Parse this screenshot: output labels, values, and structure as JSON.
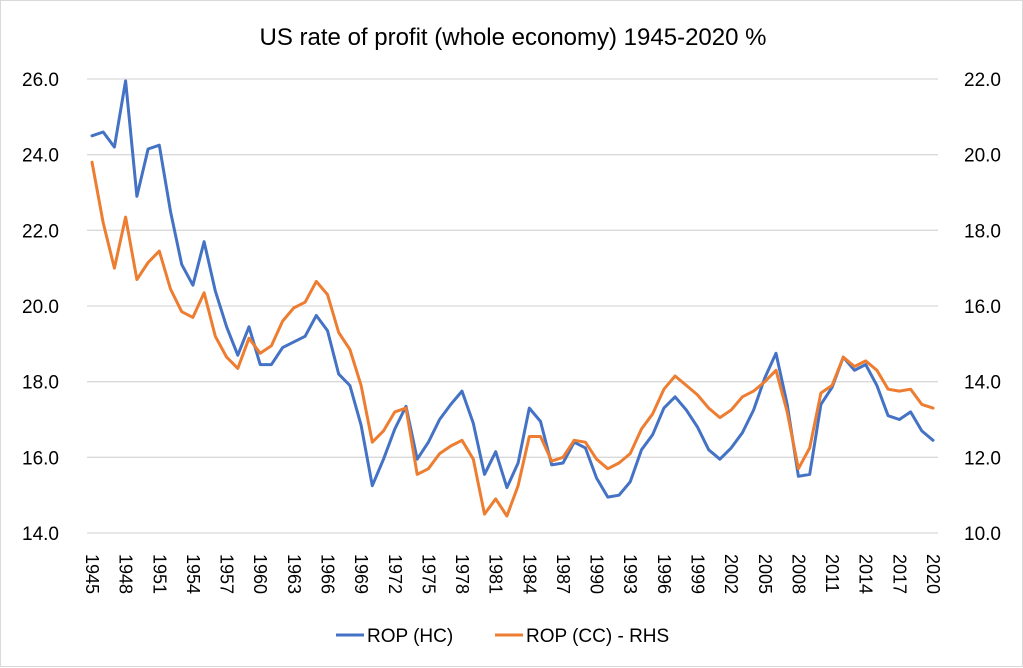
{
  "chart_data": {
    "type": "line",
    "title": "US rate of profit (whole economy) 1945-2020 %",
    "xlabel": "",
    "ylabel": "",
    "y2label": "",
    "x": [
      1945,
      1946,
      1947,
      1948,
      1949,
      1950,
      1951,
      1952,
      1953,
      1954,
      1955,
      1956,
      1957,
      1958,
      1959,
      1960,
      1961,
      1962,
      1963,
      1964,
      1965,
      1966,
      1967,
      1968,
      1969,
      1970,
      1971,
      1972,
      1973,
      1974,
      1975,
      1976,
      1977,
      1978,
      1979,
      1980,
      1981,
      1982,
      1983,
      1984,
      1985,
      1986,
      1987,
      1988,
      1989,
      1990,
      1991,
      1992,
      1993,
      1994,
      1995,
      1996,
      1997,
      1998,
      1999,
      2000,
      2001,
      2002,
      2003,
      2004,
      2005,
      2006,
      2007,
      2008,
      2009,
      2010,
      2011,
      2012,
      2013,
      2014,
      2015,
      2016,
      2017,
      2018,
      2019,
      2020
    ],
    "x_tick_labels": [
      "1945",
      "1948",
      "1951",
      "1954",
      "1957",
      "1960",
      "1963",
      "1966",
      "1969",
      "1972",
      "1975",
      "1978",
      "1981",
      "1984",
      "1987",
      "1990",
      "1993",
      "1996",
      "1999",
      "2002",
      "2005",
      "2008",
      "2011",
      "2014",
      "2017",
      "2020"
    ],
    "ylim": [
      14.0,
      26.0
    ],
    "y_ticks": [
      "26.0",
      "24.0",
      "22.0",
      "20.0",
      "18.0",
      "16.0",
      "14.0"
    ],
    "y2lim": [
      10.0,
      22.0
    ],
    "y2_ticks": [
      "22.0",
      "20.0",
      "18.0",
      "16.0",
      "14.0",
      "12.0",
      "10.0"
    ],
    "grid": true,
    "legend_position": "bottom",
    "series": [
      {
        "name": "ROP (HC)",
        "axis": "left",
        "color": "#4472C4",
        "values": [
          24.5,
          24.6,
          24.2,
          25.95,
          22.9,
          24.15,
          24.25,
          22.5,
          21.1,
          20.55,
          21.7,
          20.4,
          19.45,
          18.7,
          19.45,
          18.45,
          18.45,
          18.9,
          19.05,
          19.2,
          19.75,
          19.35,
          18.2,
          17.9,
          16.85,
          15.25,
          15.95,
          16.75,
          17.35,
          15.95,
          16.4,
          17.0,
          17.4,
          17.75,
          16.9,
          15.55,
          16.15,
          15.2,
          15.85,
          17.3,
          16.95,
          15.8,
          15.85,
          16.4,
          16.25,
          15.45,
          14.95,
          15.0,
          15.35,
          16.2,
          16.6,
          17.3,
          17.6,
          17.25,
          16.8,
          16.2,
          15.95,
          16.25,
          16.65,
          17.25,
          18.1,
          18.75,
          17.4,
          15.5,
          15.55,
          17.4,
          17.85,
          18.65,
          18.3,
          18.45,
          17.9,
          17.1,
          17.0,
          17.2,
          16.7,
          16.45
        ]
      },
      {
        "name": "ROP (CC) - RHS",
        "axis": "right",
        "color": "#ED7D31",
        "values": [
          19.8,
          18.2,
          17.0,
          18.35,
          16.7,
          17.15,
          17.45,
          16.45,
          15.85,
          15.7,
          16.35,
          15.2,
          14.65,
          14.35,
          15.15,
          14.75,
          14.95,
          15.6,
          15.95,
          16.1,
          16.65,
          16.3,
          15.3,
          14.85,
          13.9,
          12.4,
          12.7,
          13.2,
          13.3,
          11.55,
          11.7,
          12.1,
          12.3,
          12.45,
          11.95,
          10.5,
          10.9,
          10.45,
          11.25,
          12.55,
          12.55,
          11.9,
          12.0,
          12.45,
          12.4,
          11.95,
          11.7,
          11.85,
          12.1,
          12.75,
          13.15,
          13.8,
          14.15,
          13.9,
          13.65,
          13.3,
          13.05,
          13.25,
          13.6,
          13.75,
          14.0,
          14.3,
          13.2,
          11.7,
          12.25,
          13.7,
          13.9,
          14.65,
          14.4,
          14.55,
          14.3,
          13.8,
          13.75,
          13.8,
          13.4,
          13.3
        ]
      }
    ]
  }
}
